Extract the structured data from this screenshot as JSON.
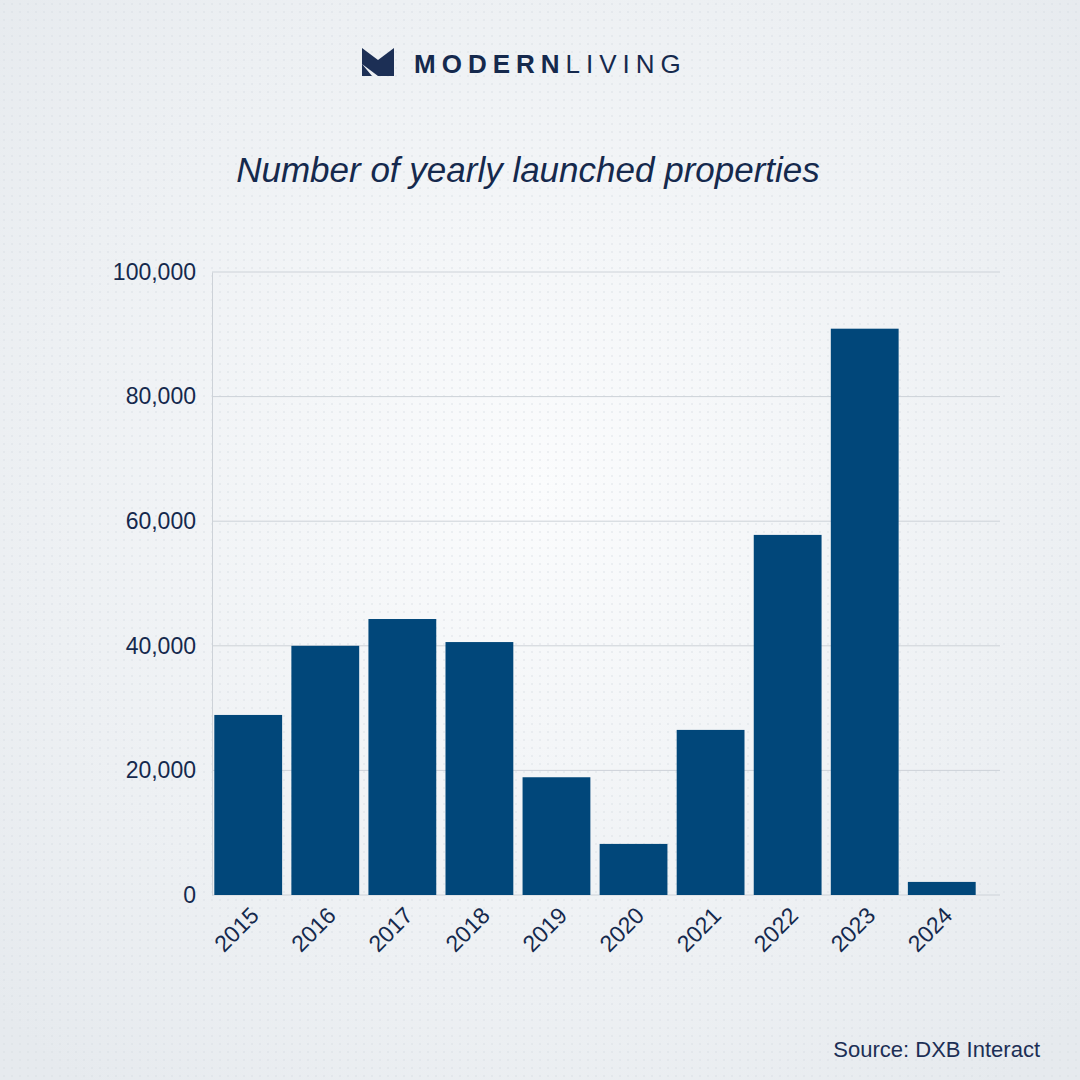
{
  "brand": {
    "bold": "MODERN",
    "light": "LIVING"
  },
  "chart_data": {
    "type": "bar",
    "title": "Number of yearly launched properties",
    "categories": [
      "2015",
      "2016",
      "2017",
      "2018",
      "2019",
      "2020",
      "2021",
      "2022",
      "2023",
      "2024"
    ],
    "values": [
      28900,
      40000,
      44300,
      40600,
      18900,
      8200,
      26500,
      57800,
      90900,
      2100
    ],
    "color": "#01477a",
    "ylim": [
      0,
      100000
    ],
    "yticks": [
      0,
      {
        "value": 20000,
        "label": "20,000"
      },
      {
        "value": 40000,
        "label": "40,000"
      },
      {
        "value": 60000,
        "label": "60,000"
      },
      {
        "value": 80000,
        "label": "80,000"
      },
      {
        "value": 100000,
        "label": "100,000"
      }
    ],
    "grid": true,
    "source": "Source: DXB Interact"
  }
}
